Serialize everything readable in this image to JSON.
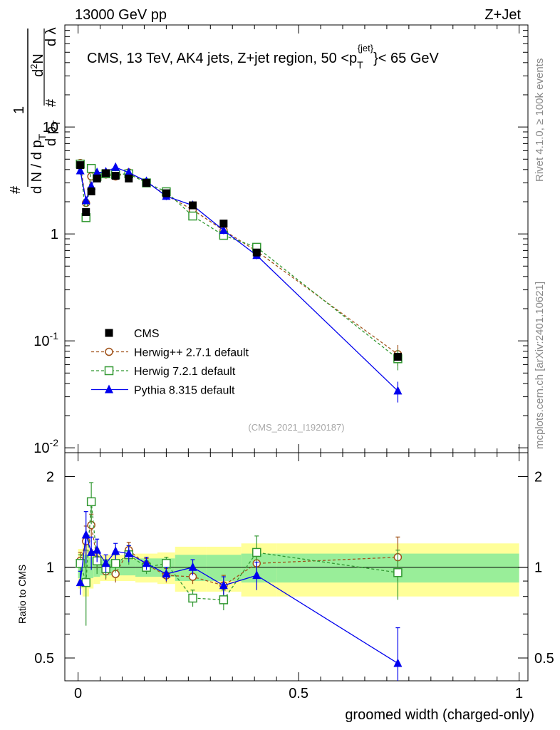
{
  "header": {
    "left": "13000 GeV pp",
    "right": "Z+Jet"
  },
  "side_labels": {
    "rivet": "Rivet 4.1.0, ≥ 100k events",
    "mcplots": "mcplots.cern.ch [arXiv:2401.10621]"
  },
  "chart_data": {
    "type": "scatter",
    "title": "CMS, 13 TeV, AK4 jets, Z+jet region, 50 <p_T^{jet}< 65 GeV",
    "watermark": "(CMS_2021_I1920187)",
    "xlabel": "groomed width (charged-only)",
    "ylabel": "1/dN/dp_T  d²N/dp_T dλ",
    "ratio_ylabel": "Ratio to CMS",
    "xlim": [
      -0.03,
      1.02
    ],
    "ylim_main": [
      0.009,
      90
    ],
    "ylim_ratio": [
      0.42,
      2.4
    ],
    "x_ticks": [
      "0",
      "0.5",
      "1"
    ],
    "y_ticks_main": [
      "10^{-2}",
      "10^{-1}",
      "1",
      "10"
    ],
    "y_ticks_ratio": [
      "0.5",
      "1",
      "2"
    ],
    "x": [
      0.005,
      0.018,
      0.03,
      0.043,
      0.063,
      0.085,
      0.115,
      0.155,
      0.2,
      0.26,
      0.33,
      0.405,
      0.725
    ],
    "bin_edges": [
      0,
      0.01,
      0.025,
      0.035,
      0.05,
      0.075,
      0.1,
      0.13,
      0.18,
      0.22,
      0.29,
      0.37,
      0.45,
      1.0
    ],
    "band_inner": [
      0.08,
      0.1,
      0.08,
      0.07,
      0.06,
      0.06,
      0.06,
      0.07,
      0.07,
      0.1,
      0.1,
      0.11,
      0.11
    ],
    "band_outer": [
      0.15,
      0.2,
      0.15,
      0.12,
      0.1,
      0.1,
      0.1,
      0.11,
      0.12,
      0.17,
      0.17,
      0.2,
      0.2
    ],
    "series": [
      {
        "name": "CMS",
        "values": [
          4.4,
          1.6,
          2.5,
          3.3,
          3.7,
          3.5,
          3.3,
          3.0,
          2.4,
          1.85,
          1.25,
          0.67,
          0.071
        ]
      },
      {
        "name": "Herwig++ 2.7.1 default",
        "color": "#a0521a",
        "values": [
          4.6,
          1.95,
          3.45,
          3.5,
          3.6,
          3.45,
          3.75,
          3.05,
          2.3,
          1.68,
          1.08,
          0.69,
          0.075
        ],
        "ratio": [
          1.05,
          1.22,
          1.38,
          1.06,
          0.97,
          0.95,
          1.14,
          1.02,
          0.94,
          0.93,
          0.87,
          1.03,
          1.08
        ],
        "ratio_err": [
          0.07,
          0.15,
          0.12,
          0.08,
          0.06,
          0.06,
          0.07,
          0.05,
          0.05,
          0.05,
          0.07,
          0.12,
          0.18
        ]
      },
      {
        "name": "Herwig 7.2.1 default",
        "color": "#339933",
        "values": [
          4.5,
          1.42,
          4.1,
          3.45,
          3.65,
          3.6,
          3.65,
          3.0,
          2.48,
          1.47,
          0.97,
          0.75,
          0.068
        ],
        "ratio": [
          1.03,
          0.89,
          1.65,
          1.05,
          0.99,
          1.03,
          1.1,
          1.0,
          1.03,
          0.79,
          0.78,
          1.12,
          0.96
        ],
        "ratio_err": [
          0.07,
          0.25,
          0.26,
          0.1,
          0.07,
          0.07,
          0.08,
          0.05,
          0.05,
          0.05,
          0.06,
          0.15,
          0.18
        ]
      },
      {
        "name": "Pythia 8.315 default",
        "color": "#0000ee",
        "values": [
          3.9,
          2.05,
          2.8,
          3.75,
          3.8,
          4.2,
          3.75,
          3.1,
          2.25,
          1.85,
          1.08,
          0.63,
          0.034
        ],
        "ratio": [
          0.89,
          1.28,
          1.12,
          1.14,
          1.03,
          1.13,
          1.11,
          1.03,
          0.95,
          1.0,
          0.87,
          0.94,
          0.48
        ],
        "ratio_err": [
          0.08,
          0.25,
          0.14,
          0.1,
          0.07,
          0.07,
          0.07,
          0.05,
          0.05,
          0.06,
          0.06,
          0.1,
          0.15
        ]
      }
    ]
  }
}
